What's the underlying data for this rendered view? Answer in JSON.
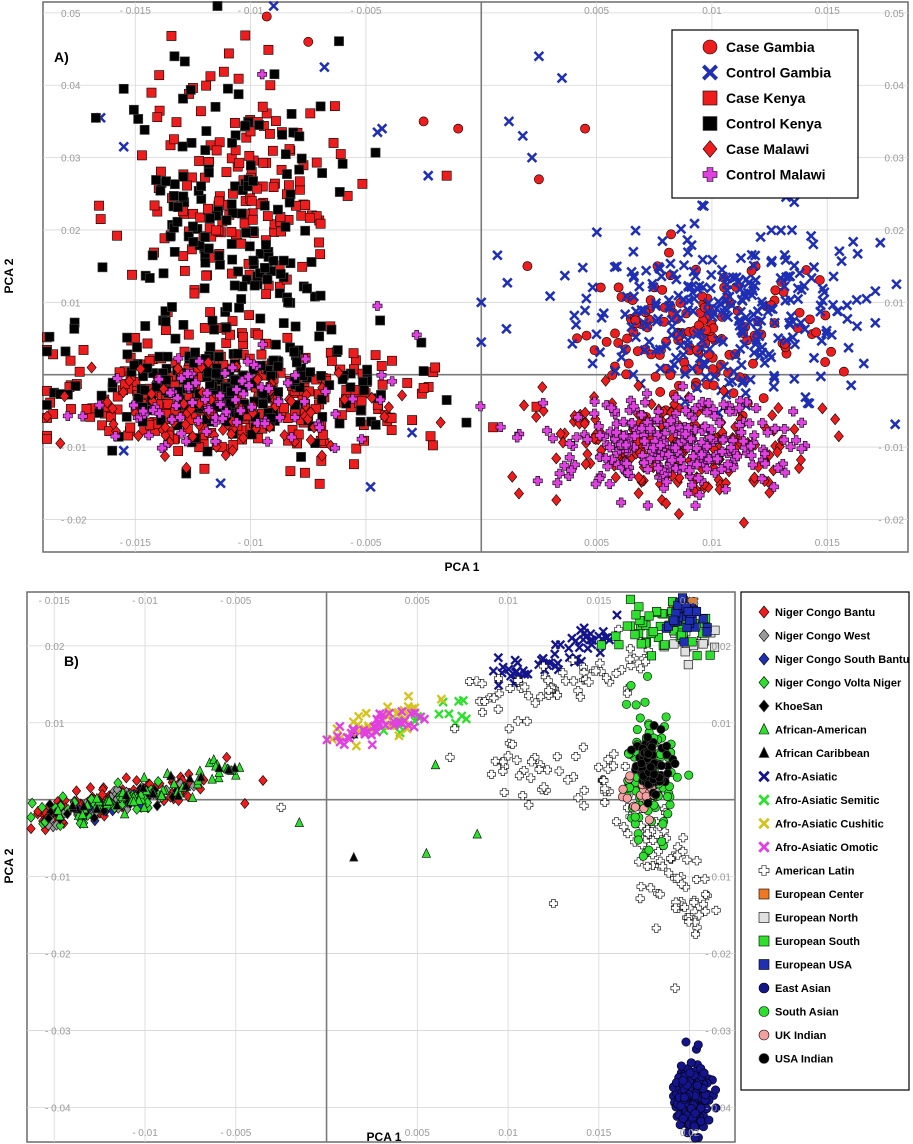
{
  "colors": {
    "red": "#ee1c1c",
    "blue": "#1f2fb4",
    "black": "#000000",
    "magenta": "#e040e0",
    "gray": "#9a9a9a",
    "green": "#2ee02e",
    "yellow": "#d6c21c",
    "orange": "#f07820",
    "lightgray": "#e0e0e0",
    "darkblue": "#14148c",
    "pink": "#f4a0a0",
    "white": "#ffffff"
  },
  "chart_data": [
    {
      "type": "scatter",
      "panel_label": "A)",
      "xlabel": "PCA 1",
      "ylabel": "PCA 2",
      "xlim": [
        -0.019,
        0.0185
      ],
      "ylim": [
        -0.0245,
        0.0515
      ],
      "x_ticks": [
        -0.015,
        -0.01,
        -0.005,
        0.005,
        0.01,
        0.015
      ],
      "x_tick_labels": [
        "- 0.015",
        "- 0.01",
        "- 0.005",
        "0.005",
        "0.01",
        "0.015"
      ],
      "y_ticks": [
        0.05,
        0.04,
        0.03,
        0.02,
        0.01,
        -0.01,
        -0.02
      ],
      "y_tick_labels": [
        "0.05",
        "0.04",
        "0.03",
        "0.02",
        "0.01",
        "- 0.01",
        "- 0.02"
      ],
      "legend_position": "top-right",
      "series": [
        {
          "name": "Case Gambia",
          "marker": "circle",
          "color": "red",
          "clusters": [
            {
              "cx": 0.0095,
              "cy": 0.005,
              "sx": 0.0025,
              "sy": 0.005,
              "n": 150
            }
          ],
          "points": [
            [
              -0.0093,
              0.0495
            ],
            [
              -0.0075,
              0.046
            ],
            [
              0.0045,
              0.034
            ],
            [
              0.0025,
              0.027
            ],
            [
              -0.0025,
              0.035
            ],
            [
              -0.001,
              0.034
            ],
            [
              0.002,
              0.015
            ]
          ]
        },
        {
          "name": "Control Gambia",
          "marker": "x",
          "color": "blue",
          "clusters": [
            {
              "cx": 0.0105,
              "cy": 0.0085,
              "sx": 0.0032,
              "sy": 0.006,
              "n": 280
            }
          ],
          "points": [
            [
              0.0025,
              0.044
            ],
            [
              0.0035,
              0.041
            ],
            [
              0.0012,
              0.035
            ],
            [
              0.0018,
              0.033
            ],
            [
              0.0022,
              0.03
            ],
            [
              0.0007,
              0.0165
            ],
            [
              0.0,
              0.01
            ],
            [
              0.0,
              0.0045
            ],
            [
              0.018,
              0.0125
            ],
            [
              0.0167,
              0.0105
            ],
            [
              -0.009,
              0.0535
            ],
            [
              -0.0068,
              0.0425
            ],
            [
              -0.0165,
              0.0355
            ],
            [
              -0.0155,
              0.0315
            ],
            [
              -0.0043,
              0.034
            ],
            [
              -0.0045,
              0.0335
            ],
            [
              -0.0023,
              0.0275
            ],
            [
              -0.0048,
              -0.0155
            ],
            [
              -0.0113,
              -0.015
            ],
            [
              -0.0155,
              -0.0105
            ],
            [
              -0.003,
              -0.008
            ]
          ]
        },
        {
          "name": "Case Kenya",
          "marker": "square",
          "color": "red",
          "clusters": [
            {
              "cx": -0.0105,
              "cy": 0.026,
              "sx": 0.0022,
              "sy": 0.009,
              "n": 170
            },
            {
              "cx": -0.011,
              "cy": -0.003,
              "sx": 0.0038,
              "sy": 0.0045,
              "n": 320
            }
          ],
          "points": [
            [
              -0.0165,
              0.0215
            ],
            [
              -0.0015,
              0.0275
            ],
            [
              -0.0022,
              -0.0085
            ],
            [
              -0.002,
              0.001
            ],
            [
              -0.012,
              -0.013
            ]
          ]
        },
        {
          "name": "Control Kenya",
          "marker": "square",
          "color": "black",
          "clusters": [
            {
              "cx": -0.0108,
              "cy": 0.022,
              "sx": 0.0022,
              "sy": 0.01,
              "n": 150
            },
            {
              "cx": -0.011,
              "cy": -0.002,
              "sx": 0.0035,
              "sy": 0.004,
              "n": 200
            }
          ],
          "points": [
            [
              -0.0133,
              0.044
            ],
            [
              -0.0155,
              0.0395
            ],
            [
              -0.0015,
              -0.0035
            ],
            [
              -0.0025,
              0.0005
            ],
            [
              -0.016,
              -0.0105
            ]
          ]
        },
        {
          "name": "Case Malawi",
          "marker": "diamond",
          "color": "red",
          "clusters": [
            {
              "cx": 0.0085,
              "cy": -0.0105,
              "sx": 0.0028,
              "sy": 0.0035,
              "n": 210
            },
            {
              "cx": -0.011,
              "cy": -0.005,
              "sx": 0.0035,
              "sy": 0.003,
              "n": 90
            }
          ],
          "points": [
            [
              0.0027,
              -0.005
            ],
            [
              0.0155,
              -0.0085
            ],
            [
              -0.0042,
              -0.0058
            ]
          ]
        },
        {
          "name": "Control Malawi",
          "marker": "plus",
          "color": "magenta",
          "clusters": [
            {
              "cx": 0.0082,
              "cy": -0.0095,
              "sx": 0.0026,
              "sy": 0.0032,
              "n": 280
            },
            {
              "cx": -0.011,
              "cy": -0.004,
              "sx": 0.0028,
              "sy": 0.0028,
              "n": 90
            }
          ],
          "points": [
            [
              -0.0095,
              0.0415
            ],
            [
              -0.0045,
              0.0095
            ],
            [
              -0.0028,
              0.0055
            ]
          ]
        }
      ]
    },
    {
      "type": "scatter",
      "panel_label": "B)",
      "xlabel": "PCA 1",
      "ylabel": "PCA 2",
      "xlim": [
        -0.0165,
        0.0225
      ],
      "ylim": [
        -0.0445,
        0.027
      ],
      "x_ticks_top": [
        -0.015,
        -0.01,
        -0.005,
        0.005,
        0.01,
        0.015,
        0.02
      ],
      "x_tick_labels_top": [
        "- 0.015",
        "- 0.01",
        "- 0.005",
        "0.005",
        "0.01",
        "0.015",
        "0.02"
      ],
      "x_ticks_bottom": [
        -0.01,
        -0.005,
        0.005,
        0.01,
        0.015,
        0.02
      ],
      "x_tick_labels_bottom": [
        "- 0.01",
        "- 0.005",
        "0.005",
        "0.01",
        "0.015",
        "0.02"
      ],
      "y_ticks": [
        0.02,
        0.01,
        -0.01,
        -0.02,
        -0.03,
        -0.04
      ],
      "y_tick_labels": [
        "0.02",
        "0.01",
        "- 0.01",
        "- 0.02",
        "- 0.03",
        "- 0.04"
      ],
      "legend_position": "right",
      "series": [
        {
          "name": "Niger Congo Bantu",
          "marker": "diamond",
          "color": "red",
          "clusters": [
            {
              "line": [
                [
                  -0.0155,
                  -0.002
                ],
                [
                  -0.0075,
                  0.002
                ]
              ],
              "sd": 0.0009,
              "n": 120
            }
          ],
          "points": [
            [
              -0.0055,
              0.0055
            ],
            [
              -0.0045,
              -0.0005
            ],
            [
              -0.0035,
              0.0025
            ]
          ]
        },
        {
          "name": "Niger Congo West",
          "marker": "diamond",
          "color": "gray",
          "clusters": [
            {
              "line": [
                [
                  -0.0155,
                  -0.0025
                ],
                [
                  -0.0085,
                  0.0015
                ]
              ],
              "sd": 0.0008,
              "n": 40
            }
          ],
          "points": []
        },
        {
          "name": "Niger Congo South Bantu",
          "marker": "diamond",
          "color": "blue",
          "clusters": [
            {
              "line": [
                [
                  -0.0135,
                  -0.0015
                ],
                [
                  -0.0095,
                  0.0005
                ]
              ],
              "sd": 0.0006,
              "n": 12
            }
          ],
          "points": []
        },
        {
          "name": "Niger Congo Volta Niger",
          "marker": "diamond",
          "color": "green",
          "clusters": [
            {
              "line": [
                [
                  -0.016,
                  -0.0025
                ],
                [
                  -0.0095,
                  0.0008
                ]
              ],
              "sd": 0.0008,
              "n": 45
            }
          ],
          "points": []
        },
        {
          "name": "KhoeSan",
          "marker": "diamond",
          "color": "black",
          "clusters": [
            {
              "line": [
                [
                  -0.0155,
                  -0.0025
                ],
                [
                  -0.009,
                  0.001
                ]
              ],
              "sd": 0.0007,
              "n": 20
            }
          ],
          "points": [
            [
              0.0015,
              0.0085
            ]
          ]
        },
        {
          "name": "African-American",
          "marker": "triangle",
          "color": "green",
          "clusters": [
            {
              "line": [
                [
                  -0.0145,
                  -0.002
                ],
                [
                  -0.005,
                  0.004
                ]
              ],
              "sd": 0.0008,
              "n": 55
            }
          ],
          "points": [
            [
              -0.0015,
              -0.003
            ],
            [
              0.0055,
              -0.007
            ],
            [
              0.0083,
              -0.0045
            ],
            [
              0.006,
              0.0045
            ]
          ]
        },
        {
          "name": "African Caribbean",
          "marker": "triangle",
          "color": "black",
          "clusters": [
            {
              "line": [
                [
                  -0.0135,
                  -0.001
                ],
                [
                  -0.0045,
                  0.0035
                ]
              ],
              "sd": 0.0008,
              "n": 18
            }
          ],
          "points": [
            [
              0.0015,
              -0.0075
            ],
            [
              0.0015,
              0.0085
            ]
          ]
        },
        {
          "name": "Afro-Asiatic",
          "marker": "x",
          "color": "darkblue",
          "clusters": [
            {
              "line": [
                [
                  0.0095,
                  0.0155
                ],
                [
                  0.0155,
                  0.0215
                ]
              ],
              "sd": 0.0008,
              "n": 55
            }
          ],
          "points": [
            [
              0.016,
              0.024
            ],
            [
              0.014,
              0.022
            ]
          ]
        },
        {
          "name": "Afro-Asiatic Semitic",
          "marker": "x",
          "color": "green",
          "clusters": [
            {
              "line": [
                [
                  0.003,
                  0.009
                ],
                [
                  0.0075,
                  0.012
                ]
              ],
              "sd": 0.0008,
              "n": 14
            }
          ],
          "points": [
            [
              0.0077,
              0.0105
            ]
          ]
        },
        {
          "name": "Afro-Asiatic Cushitic",
          "marker": "x",
          "color": "yellow",
          "clusters": [
            {
              "line": [
                [
                  0.001,
                  0.008
                ],
                [
                  0.0055,
                  0.0125
                ]
              ],
              "sd": 0.0009,
              "n": 35
            }
          ],
          "points": []
        },
        {
          "name": "Afro-Asiatic Omotic",
          "marker": "x",
          "color": "magenta",
          "clusters": [
            {
              "line": [
                [
                  0.0,
                  0.007
                ],
                [
                  0.005,
                  0.011
                ]
              ],
              "sd": 0.0008,
              "n": 40
            }
          ],
          "points": []
        },
        {
          "name": "American Latin",
          "marker": "plus",
          "color": "white",
          "clusters": [
            {
              "line": [
                [
                  0.0085,
                  0.012
                ],
                [
                  0.0175,
                  0.0185
                ]
              ],
              "sd": 0.0015,
              "n": 60
            },
            {
              "line": [
                [
                  0.0165,
                  0.005
                ],
                [
                  0.02,
                  -0.016
                ]
              ],
              "sd": 0.0011,
              "n": 95
            },
            {
              "line": [
                [
                  0.0095,
                  0.006
                ],
                [
                  0.015,
                  0.001
                ]
              ],
              "sd": 0.0018,
              "n": 40
            }
          ],
          "points": [
            [
              -0.0025,
              -0.001
            ],
            [
              0.0125,
              -0.0135
            ],
            [
              0.0192,
              -0.0245
            ],
            [
              0.0093,
              0.005
            ],
            [
              0.0068,
              0.0055
            ]
          ]
        },
        {
          "name": "European Center",
          "marker": "square",
          "color": "orange",
          "clusters": [
            {
              "cx": 0.0197,
              "cy": 0.0258,
              "sx": 0.0003,
              "sy": 0.0004,
              "n": 4
            }
          ],
          "points": []
        },
        {
          "name": "European North",
          "marker": "square",
          "color": "lightgray",
          "clusters": [
            {
              "cx": 0.0202,
              "cy": 0.0205,
              "sx": 0.0009,
              "sy": 0.0012,
              "n": 18
            }
          ],
          "points": []
        },
        {
          "name": "European South",
          "marker": "square",
          "color": "green",
          "clusters": [
            {
              "cx": 0.0187,
              "cy": 0.0225,
              "sx": 0.0012,
              "sy": 0.0016,
              "n": 60
            }
          ],
          "points": []
        },
        {
          "name": "European USA",
          "marker": "square",
          "color": "blue",
          "clusters": [
            {
              "cx": 0.0198,
              "cy": 0.0235,
              "sx": 0.0006,
              "sy": 0.0013,
              "n": 30
            }
          ],
          "points": []
        },
        {
          "name": "East Asian",
          "marker": "circle",
          "color": "darkblue",
          "clusters": [
            {
              "cx": 0.0201,
              "cy": -0.0385,
              "sx": 0.00045,
              "sy": 0.0021,
              "n": 200
            }
          ],
          "points": [
            [
              0.0198,
              -0.0315
            ],
            [
              0.0203,
              -0.0445
            ]
          ]
        },
        {
          "name": "South Asian",
          "marker": "circle",
          "color": "green",
          "clusters": [
            {
              "cx": 0.0178,
              "cy": 0.0035,
              "sx": 0.0007,
              "sy": 0.0045,
              "n": 110
            }
          ],
          "points": []
        },
        {
          "name": "UK Indian",
          "marker": "circle",
          "color": "pink",
          "clusters": [
            {
              "cx": 0.0175,
              "cy": 0.001,
              "sx": 0.0005,
              "sy": 0.0022,
              "n": 25
            }
          ],
          "points": []
        },
        {
          "name": "USA Indian",
          "marker": "circle",
          "color": "black",
          "clusters": [
            {
              "cx": 0.0178,
              "cy": 0.0045,
              "sx": 0.0005,
              "sy": 0.0018,
              "n": 90
            }
          ],
          "points": []
        }
      ]
    }
  ]
}
